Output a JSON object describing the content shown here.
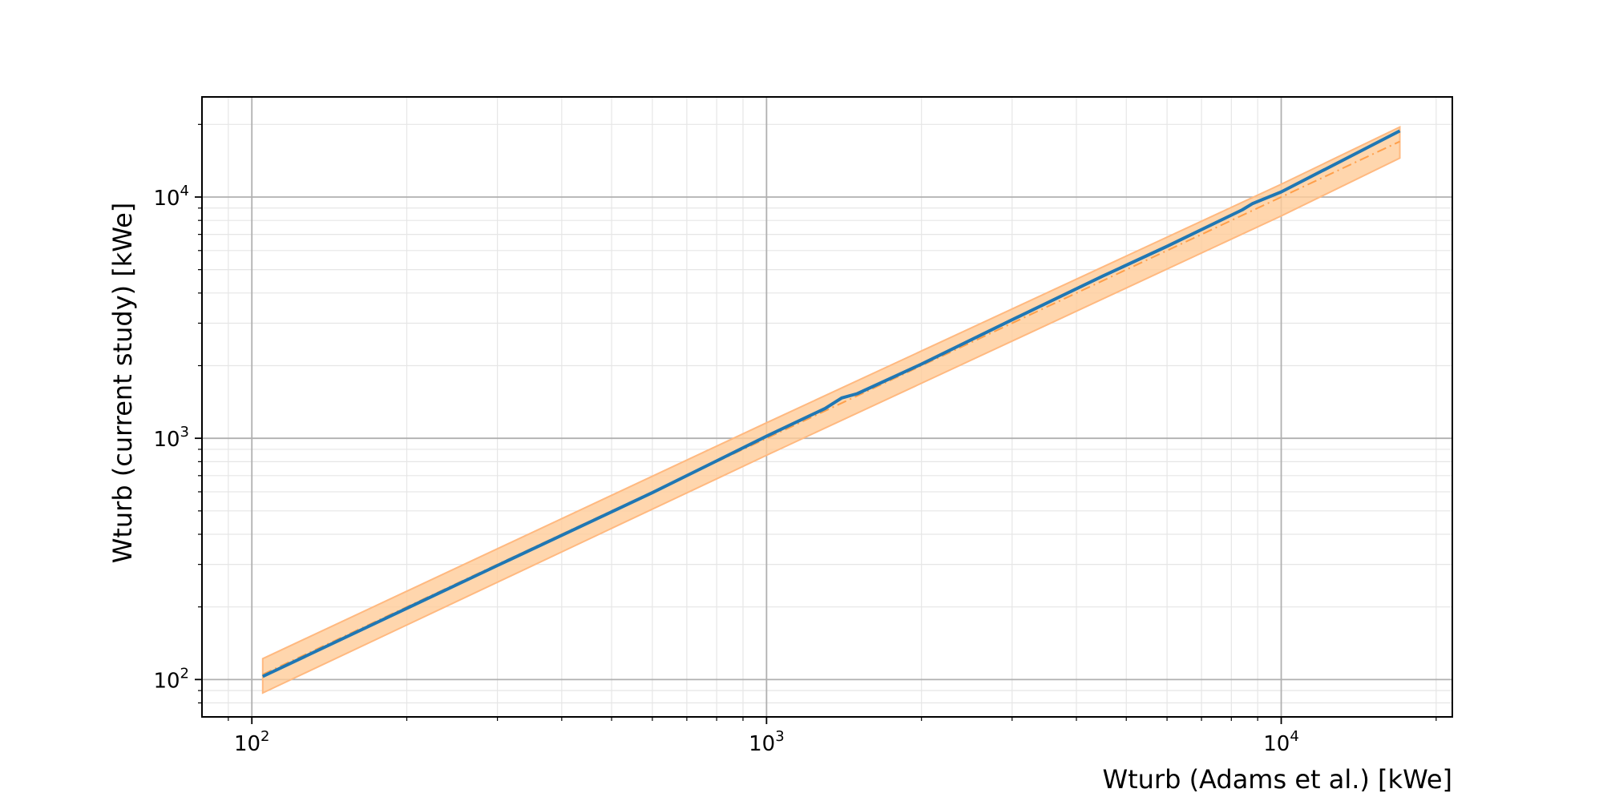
{
  "chart_data": {
    "type": "line",
    "title": "",
    "xlabel": "Wturb (Adams et al.) [kWe]",
    "ylabel": "Wturb (current study) [kWe]",
    "xscale": "log",
    "yscale": "log",
    "xlim": [
      80,
      21500
    ],
    "ylim": [
      70,
      26000
    ],
    "grid": "major and minor",
    "x_ticks": [
      {
        "value": 100,
        "base": "10",
        "exp": "2"
      },
      {
        "value": 1000,
        "base": "10",
        "exp": "3"
      },
      {
        "value": 10000,
        "base": "10",
        "exp": "4"
      }
    ],
    "y_ticks": [
      {
        "value": 100,
        "base": "10",
        "exp": "2"
      },
      {
        "value": 1000,
        "base": "10",
        "exp": "3"
      },
      {
        "value": 10000,
        "base": "10",
        "exp": "4"
      }
    ],
    "series": [
      {
        "role": "model",
        "color": "#1f77b4",
        "style": "solid",
        "x": [
          105,
          300,
          600,
          1000,
          1300,
          1400,
          1500,
          2000,
          3000,
          4500,
          6000,
          8400,
          8800,
          10000,
          17000
        ],
        "y": [
          103,
          297,
          595,
          1020,
          1330,
          1470,
          1530,
          2030,
          3100,
          4700,
          6250,
          8850,
          9400,
          10500,
          18800
        ]
      },
      {
        "role": "reference",
        "color": "#ff9f4a",
        "style": "dashdot",
        "x": [
          105,
          1000,
          10000,
          17000
        ],
        "y": [
          105,
          1000,
          10000,
          17000
        ]
      }
    ],
    "band": {
      "color": "#ffcc99",
      "edge_color": "#ffb980",
      "x": [
        105,
        1000,
        10000,
        17000
      ],
      "upper": [
        122,
        1160,
        11300,
        19500
      ],
      "lower": [
        88,
        850,
        8350,
        14500
      ]
    }
  }
}
